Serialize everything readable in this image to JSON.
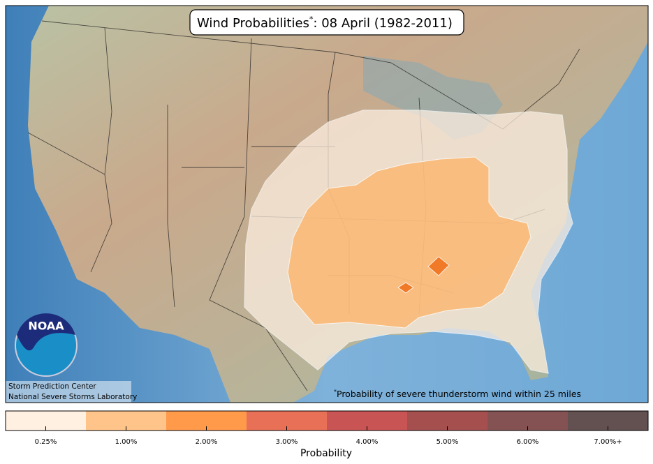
{
  "header": {
    "title_main": "Wind Probabilities",
    "title_mark": "*",
    "title_rest": ": 08 April (1982-2011)"
  },
  "logo": {
    "text": "NOAA"
  },
  "credits": [
    "Storm Prediction Center",
    "National Severe Storms Laboratory"
  ],
  "footnote": {
    "mark": "*",
    "text": "Probability of severe thunderstorm wind within 25 miles"
  },
  "legend": {
    "title": "Probability",
    "items": [
      {
        "label": "0.25%",
        "color": "#fff0e2"
      },
      {
        "label": "1.00%",
        "color": "#ffc48a"
      },
      {
        "label": "2.00%",
        "color": "#ff9a4b"
      },
      {
        "label": "3.00%",
        "color": "#e87057"
      },
      {
        "label": "4.00%",
        "color": "#c85454"
      },
      {
        "label": "5.00%",
        "color": "#a54f4f"
      },
      {
        "label": "6.00%",
        "color": "#845253"
      },
      {
        "label": "7.00%+",
        "color": "#635050"
      }
    ]
  }
}
